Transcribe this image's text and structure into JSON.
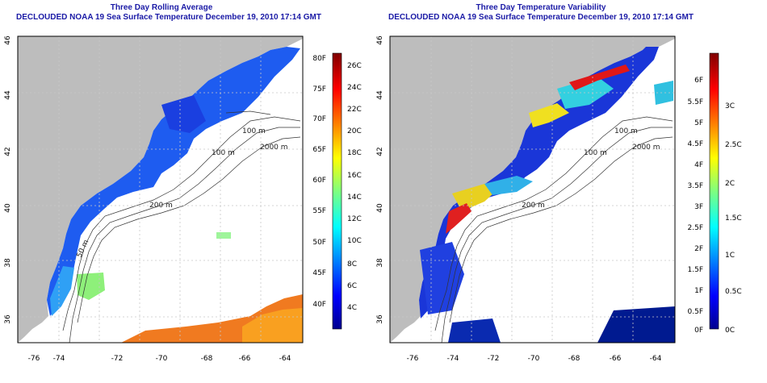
{
  "left_panel": {
    "title_line1": "Three Day Rolling Average",
    "title_line2": "DECLOUDED NOAA 19 Sea Surface Temperature December 19, 2010 17:14 GMT",
    "lat_ticks": [
      "46",
      "44",
      "42",
      "40",
      "38",
      "36"
    ],
    "lon_ticks": [
      "-76",
      "-74",
      "-72",
      "-70",
      "-68",
      "-66",
      "-64"
    ],
    "colorbar_f": [
      "80F",
      "75F",
      "70F",
      "65F",
      "60F",
      "55F",
      "50F",
      "45F",
      "40F"
    ],
    "colorbar_c": [
      "26C",
      "24C",
      "22C",
      "20C",
      "18C",
      "16C",
      "14C",
      "12C",
      "10C",
      "8C",
      "6C",
      "4C"
    ],
    "contour_labels": [
      "100 m",
      "100 m",
      "2000 m",
      "200 m",
      "50 m"
    ]
  },
  "right_panel": {
    "title_line1": "Three Day Temperature Variability",
    "title_line2": "DECLOUDED NOAA 19 Sea Surface Temperature December 19, 2010 17:14 GMT",
    "lat_ticks": [
      "46",
      "44",
      "42",
      "40",
      "38",
      "36"
    ],
    "lon_ticks": [
      "-76",
      "-74",
      "-72",
      "-70",
      "-68",
      "-66",
      "-64"
    ],
    "colorbar_f": [
      "6F",
      "5.5F",
      "5F",
      "4.5F",
      "4F",
      "3.5F",
      "3F",
      "2.5F",
      "2F",
      "1.5F",
      "1F",
      "0.5F",
      "0F"
    ],
    "colorbar_c": [
      "3C",
      "2.5C",
      "2C",
      "1.5C",
      "1C",
      "0.5C",
      "0C"
    ],
    "contour_labels": [
      "100 m",
      "100 m",
      "2000 m",
      "200 m"
    ]
  }
}
